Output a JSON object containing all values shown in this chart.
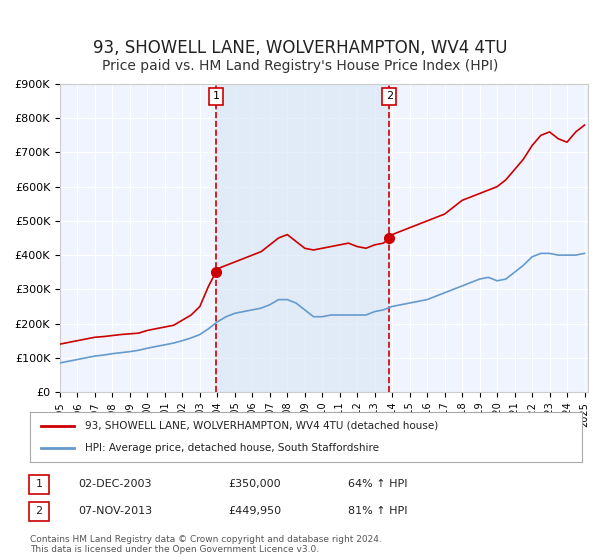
{
  "title": "93, SHOWELL LANE, WOLVERHAMPTON, WV4 4TU",
  "subtitle": "Price paid vs. HM Land Registry's House Price Index (HPI)",
  "title_fontsize": 12,
  "subtitle_fontsize": 10,
  "bg_color": "#ffffff",
  "plot_bg_color": "#f0f4ff",
  "grid_color": "#ffffff",
  "red_line_color": "#cc0000",
  "blue_line_color": "#6699cc",
  "marker_color": "#cc0000",
  "dashed_line_color": "#cc0000",
  "ylim": [
    0,
    900000
  ],
  "yticks": [
    0,
    100000,
    200000,
    300000,
    400000,
    500000,
    600000,
    700000,
    800000,
    900000
  ],
  "ytick_labels": [
    "£0",
    "£100K",
    "£200K",
    "£300K",
    "£400K",
    "£500K",
    "£600K",
    "£700K",
    "£800K",
    "£900K"
  ],
  "xlim_start": 1995.0,
  "xlim_end": 2025.2,
  "xtick_years": [
    1995,
    1996,
    1997,
    1998,
    1999,
    2000,
    2001,
    2002,
    2003,
    2004,
    2005,
    2006,
    2007,
    2008,
    2009,
    2010,
    2011,
    2012,
    2013,
    2014,
    2015,
    2016,
    2017,
    2018,
    2019,
    2020,
    2021,
    2022,
    2023,
    2024,
    2025
  ],
  "marker1_x": 2003.917,
  "marker1_y": 350000,
  "marker2_x": 2013.833,
  "marker2_y": 449950,
  "vline1_x": 2003.917,
  "vline2_x": 2013.833,
  "shade_x1": 2003.917,
  "shade_x2": 2013.833,
  "legend_label_red": "93, SHOWELL LANE, WOLVERHAMPTON, WV4 4TU (detached house)",
  "legend_label_blue": "HPI: Average price, detached house, South Staffordshire",
  "table_row1_num": "1",
  "table_row1_date": "02-DEC-2003",
  "table_row1_price": "£350,000",
  "table_row1_hpi": "64% ↑ HPI",
  "table_row2_num": "2",
  "table_row2_date": "07-NOV-2013",
  "table_row2_price": "£449,950",
  "table_row2_hpi": "81% ↑ HPI",
  "footnote1": "Contains HM Land Registry data © Crown copyright and database right 2024.",
  "footnote2": "This data is licensed under the Open Government Licence v3.0.",
  "red_x": [
    1995.0,
    1995.5,
    1996.0,
    1996.5,
    1997.0,
    1997.5,
    1998.0,
    1998.5,
    1999.0,
    1999.5,
    2000.0,
    2000.5,
    2001.0,
    2001.5,
    2002.0,
    2002.5,
    2003.0,
    2003.5,
    2003.917,
    2004.0,
    2004.5,
    2005.0,
    2005.5,
    2006.0,
    2006.5,
    2007.0,
    2007.5,
    2008.0,
    2008.5,
    2009.0,
    2009.5,
    2010.0,
    2010.5,
    2011.0,
    2011.5,
    2012.0,
    2012.5,
    2013.0,
    2013.5,
    2013.833,
    2014.0,
    2014.5,
    2015.0,
    2015.5,
    2016.0,
    2016.5,
    2017.0,
    2017.5,
    2018.0,
    2018.5,
    2019.0,
    2019.5,
    2020.0,
    2020.5,
    2021.0,
    2021.5,
    2022.0,
    2022.5,
    2023.0,
    2023.5,
    2024.0,
    2024.5,
    2025.0
  ],
  "red_y": [
    140000,
    145000,
    150000,
    155000,
    160000,
    162000,
    165000,
    168000,
    170000,
    172000,
    180000,
    185000,
    190000,
    195000,
    210000,
    225000,
    250000,
    310000,
    350000,
    360000,
    370000,
    380000,
    390000,
    400000,
    410000,
    430000,
    450000,
    460000,
    440000,
    420000,
    415000,
    420000,
    425000,
    430000,
    435000,
    425000,
    420000,
    430000,
    435000,
    449950,
    460000,
    470000,
    480000,
    490000,
    500000,
    510000,
    520000,
    540000,
    560000,
    570000,
    580000,
    590000,
    600000,
    620000,
    650000,
    680000,
    720000,
    750000,
    760000,
    740000,
    730000,
    760000,
    780000
  ],
  "blue_x": [
    1995.0,
    1995.5,
    1996.0,
    1996.5,
    1997.0,
    1997.5,
    1998.0,
    1998.5,
    1999.0,
    1999.5,
    2000.0,
    2000.5,
    2001.0,
    2001.5,
    2002.0,
    2002.5,
    2003.0,
    2003.5,
    2004.0,
    2004.5,
    2005.0,
    2005.5,
    2006.0,
    2006.5,
    2007.0,
    2007.5,
    2008.0,
    2008.5,
    2009.0,
    2009.5,
    2010.0,
    2010.5,
    2011.0,
    2011.5,
    2012.0,
    2012.5,
    2013.0,
    2013.5,
    2014.0,
    2014.5,
    2015.0,
    2015.5,
    2016.0,
    2016.5,
    2017.0,
    2017.5,
    2018.0,
    2018.5,
    2019.0,
    2019.5,
    2020.0,
    2020.5,
    2021.0,
    2021.5,
    2022.0,
    2022.5,
    2023.0,
    2023.5,
    2024.0,
    2024.5,
    2025.0
  ],
  "blue_y": [
    85000,
    90000,
    95000,
    100000,
    105000,
    108000,
    112000,
    115000,
    118000,
    122000,
    128000,
    133000,
    138000,
    143000,
    150000,
    158000,
    168000,
    185000,
    205000,
    220000,
    230000,
    235000,
    240000,
    245000,
    255000,
    270000,
    270000,
    260000,
    240000,
    220000,
    220000,
    225000,
    225000,
    225000,
    225000,
    225000,
    235000,
    240000,
    250000,
    255000,
    260000,
    265000,
    270000,
    280000,
    290000,
    300000,
    310000,
    320000,
    330000,
    335000,
    325000,
    330000,
    350000,
    370000,
    395000,
    405000,
    405000,
    400000,
    400000,
    400000,
    405000
  ]
}
